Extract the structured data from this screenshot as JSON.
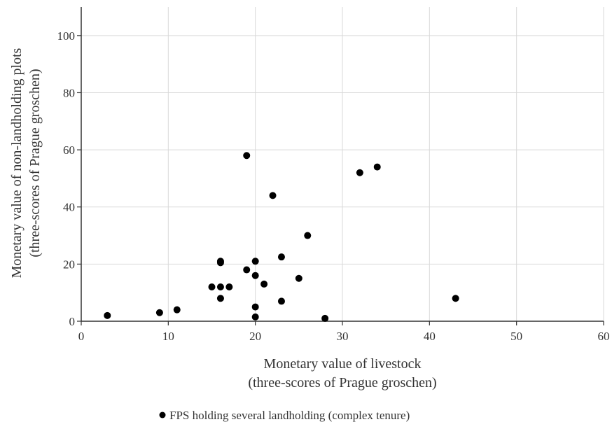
{
  "chart_data": {
    "type": "scatter",
    "title": "",
    "xlabel": [
      "Monetary value of livestock",
      "(three-scores of Prague groschen)"
    ],
    "ylabel": [
      "Monetary value of non-landholding plots",
      "(three-scores of Prague groschen)"
    ],
    "xlim": [
      0,
      60
    ],
    "ylim": [
      0,
      100
    ],
    "xticks": [
      0,
      10,
      20,
      30,
      40,
      50,
      60
    ],
    "yticks": [
      0,
      20,
      40,
      60,
      80,
      100
    ],
    "grid": true,
    "legend_position": "bottom",
    "series": [
      {
        "name": "FPS holding several landholding (complex tenure)",
        "color": "#000000",
        "points": [
          {
            "x": 3,
            "y": 2
          },
          {
            "x": 9,
            "y": 3
          },
          {
            "x": 11,
            "y": 4
          },
          {
            "x": 15,
            "y": 12
          },
          {
            "x": 16,
            "y": 12
          },
          {
            "x": 16,
            "y": 8
          },
          {
            "x": 16,
            "y": 20.5
          },
          {
            "x": 16,
            "y": 21
          },
          {
            "x": 17,
            "y": 12
          },
          {
            "x": 19,
            "y": 58
          },
          {
            "x": 19,
            "y": 18
          },
          {
            "x": 20,
            "y": 21
          },
          {
            "x": 20,
            "y": 16
          },
          {
            "x": 20,
            "y": 5
          },
          {
            "x": 20,
            "y": 1.5
          },
          {
            "x": 21,
            "y": 13
          },
          {
            "x": 22,
            "y": 44
          },
          {
            "x": 23,
            "y": 22.5
          },
          {
            "x": 23,
            "y": 7
          },
          {
            "x": 25,
            "y": 15
          },
          {
            "x": 26,
            "y": 30
          },
          {
            "x": 28,
            "y": 1
          },
          {
            "x": 32,
            "y": 52
          },
          {
            "x": 34,
            "y": 54
          },
          {
            "x": 43,
            "y": 8
          }
        ]
      }
    ]
  }
}
